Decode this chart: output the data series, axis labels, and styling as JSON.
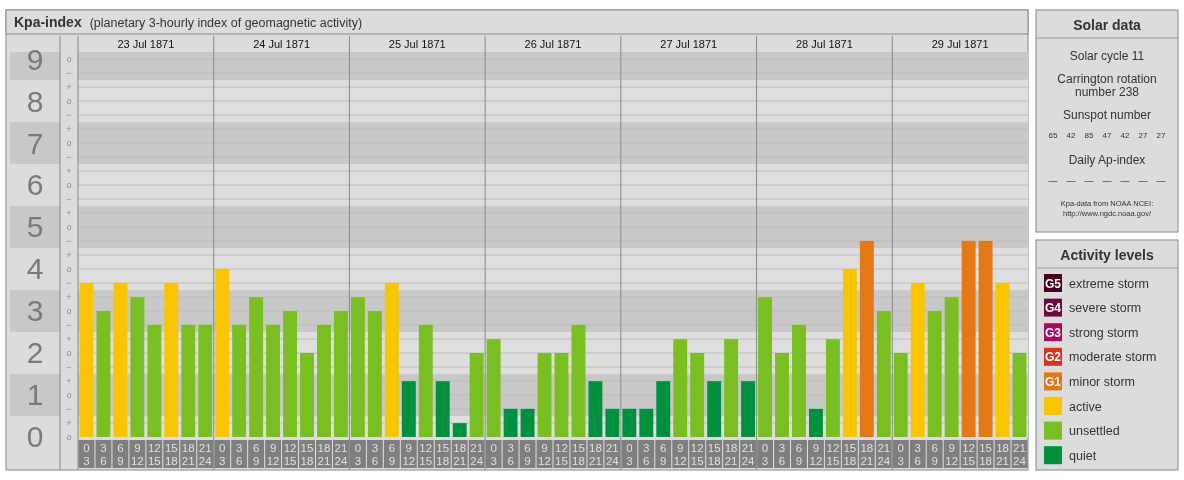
{
  "chart_data": {
    "type": "bar",
    "title": "Kpa-index",
    "subtitle": "(planetary 3-hourly index of geomagnetic activity)",
    "legend_title": "Activity levels",
    "legend": "right",
    "stacked": true,
    "grid": true,
    "categories": [
      "0\n3",
      "3\n6",
      "6\n9",
      "9\n12",
      "12\n15",
      "15\n18",
      "18\n21",
      "21\n24",
      "0\n3",
      "3\n6",
      "6\n9",
      "9\n12",
      "12\n15",
      "15\n18",
      "18\n21",
      "21\n24",
      "0\n3",
      "3\n6",
      "6\n9",
      "9\n12",
      "12\n15",
      "15\n18",
      "18\n21",
      "21\n24",
      "0\n3",
      "3\n6",
      "6\n9",
      "9\n12",
      "12\n15",
      "15\n18",
      "18\n21",
      "21\n24",
      "0\n3",
      "3\n6",
      "6\n9",
      "9\n12",
      "12\n15",
      "15\n18",
      "18\n21",
      "21\n24",
      "0\n3",
      "3\n6",
      "6\n9",
      "9\n12",
      "12\n15",
      "15\n18",
      "18\n21",
      "21\n24",
      "0\n3",
      "3\n6",
      "6\n9",
      "9\n12",
      "12\n15",
      "15\n18",
      "18\n21",
      "21\n24"
    ],
    "ylim": [
      0,
      9.17
    ],
    "yticks": [
      0,
      1,
      2,
      3,
      4,
      5,
      6,
      7,
      8,
      9
    ],
    "bands": [
      {
        "axis": "y",
        "from": 0.5,
        "to": 1.5,
        "color": "#c8c8c8"
      },
      {
        "axis": "y",
        "from": 2.5,
        "to": 3.5,
        "color": "#c8c8c8"
      },
      {
        "axis": "y",
        "from": 4.5,
        "to": 5.5,
        "color": "#c8c8c8"
      },
      {
        "axis": "y",
        "from": 6.5,
        "to": 7.5,
        "color": "#c8c8c8"
      },
      {
        "axis": "y",
        "from": 8.5,
        "to": 9.17,
        "color": "#c8c8c8"
      }
    ],
    "series": [
      {
        "name": "extreme storm",
        "color": "#4a0022",
        "values": [
          null,
          null,
          null,
          null,
          null,
          null,
          null,
          null,
          null,
          null,
          null,
          null,
          null,
          null,
          null,
          null,
          null,
          null,
          null,
          null,
          null,
          null,
          null,
          null,
          null,
          null,
          null,
          null,
          null,
          null,
          null,
          null,
          null,
          null,
          null,
          null,
          null,
          null,
          null,
          null,
          null,
          null,
          null,
          null,
          null,
          null,
          null,
          null,
          null,
          null,
          null,
          null,
          null,
          null,
          null,
          null
        ]
      },
      {
        "name": "severe storm",
        "color": "#6b0a40",
        "values": [
          null,
          null,
          null,
          null,
          null,
          null,
          null,
          null,
          null,
          null,
          null,
          null,
          null,
          null,
          null,
          null,
          null,
          null,
          null,
          null,
          null,
          null,
          null,
          null,
          null,
          null,
          null,
          null,
          null,
          null,
          null,
          null,
          null,
          null,
          null,
          null,
          null,
          null,
          null,
          null,
          null,
          null,
          null,
          null,
          null,
          null,
          null,
          null,
          null,
          null,
          null,
          null,
          null,
          null,
          null,
          null
        ]
      },
      {
        "name": "strong storm",
        "color": "#a80c5e",
        "values": [
          null,
          null,
          null,
          null,
          null,
          null,
          null,
          null,
          null,
          null,
          null,
          null,
          null,
          null,
          null,
          null,
          null,
          null,
          null,
          null,
          null,
          null,
          null,
          null,
          null,
          null,
          null,
          null,
          null,
          null,
          null,
          null,
          null,
          null,
          null,
          null,
          null,
          null,
          null,
          null,
          null,
          null,
          null,
          null,
          null,
          null,
          null,
          null,
          null,
          null,
          null,
          null,
          null,
          null,
          null,
          null
        ]
      },
      {
        "name": "moderate storm",
        "color": "#d8331f",
        "values": [
          null,
          null,
          null,
          null,
          null,
          null,
          null,
          null,
          null,
          null,
          null,
          null,
          null,
          null,
          null,
          null,
          null,
          null,
          null,
          null,
          null,
          null,
          null,
          null,
          null,
          null,
          null,
          null,
          null,
          null,
          null,
          null,
          null,
          null,
          null,
          null,
          null,
          null,
          null,
          null,
          null,
          null,
          null,
          null,
          null,
          null,
          null,
          null,
          null,
          null,
          null,
          null,
          null,
          null,
          null,
          null
        ]
      },
      {
        "name": "minor storm",
        "color": "#e47814",
        "values": [
          null,
          null,
          null,
          null,
          null,
          null,
          null,
          null,
          null,
          null,
          null,
          null,
          null,
          null,
          null,
          null,
          null,
          null,
          null,
          null,
          null,
          null,
          null,
          null,
          null,
          null,
          null,
          null,
          null,
          null,
          null,
          null,
          null,
          null,
          null,
          null,
          null,
          null,
          null,
          null,
          null,
          null,
          null,
          null,
          null,
          null,
          4.67,
          null,
          null,
          null,
          null,
          null,
          4.67,
          4.67,
          null,
          null
        ]
      },
      {
        "name": "active",
        "color": "#f9c400",
        "values": [
          3.67,
          null,
          3.67,
          null,
          null,
          3.67,
          null,
          null,
          4,
          null,
          null,
          null,
          null,
          null,
          null,
          null,
          null,
          null,
          3.67,
          null,
          null,
          null,
          null,
          null,
          null,
          null,
          null,
          null,
          null,
          null,
          null,
          null,
          null,
          null,
          null,
          null,
          null,
          null,
          null,
          null,
          null,
          null,
          null,
          null,
          null,
          4,
          null,
          null,
          null,
          3.67,
          null,
          null,
          null,
          null,
          3.67,
          null
        ]
      },
      {
        "name": "unsettled",
        "color": "#79bf21",
        "values": [
          null,
          3,
          null,
          3.33,
          2.67,
          null,
          2.67,
          2.67,
          null,
          2.67,
          3.33,
          2.67,
          3,
          2,
          2.67,
          3,
          3.33,
          3,
          null,
          null,
          2.67,
          null,
          null,
          2,
          2.33,
          null,
          null,
          2,
          2,
          2.67,
          null,
          null,
          null,
          null,
          null,
          2.33,
          2,
          null,
          2.33,
          null,
          3.33,
          2,
          2.67,
          null,
          2.33,
          null,
          null,
          3,
          2,
          null,
          3,
          3.33,
          null,
          null,
          null,
          2
        ]
      },
      {
        "name": "quiet",
        "color": "#00903f",
        "values": [
          null,
          null,
          null,
          null,
          null,
          null,
          null,
          null,
          null,
          null,
          null,
          null,
          null,
          null,
          null,
          null,
          null,
          null,
          null,
          1.33,
          null,
          1.33,
          0.33,
          null,
          null,
          0.67,
          0.67,
          null,
          null,
          null,
          1.33,
          0.67,
          0.67,
          0.67,
          1.33,
          null,
          null,
          1.33,
          null,
          1.33,
          null,
          null,
          null,
          0.67,
          null,
          null,
          null,
          null,
          null,
          null,
          null,
          null,
          null,
          null,
          null,
          null
        ]
      }
    ],
    "annotations": [
      "23 Jul 1871",
      "24 Jul 1871",
      "25 Jul 1871",
      "26 Jul 1871",
      "27 Jul 1871",
      "28 Jul 1871",
      "29 Jul 1871",
      "Solar data",
      "Solar cycle 11",
      "Carrington rotation number 238",
      "Sunspot number",
      "65 42 85 47 42 27 27",
      "Daily Ap-index",
      "— — — — — — —",
      "Kpa-data from NOAA NCEI:",
      "http://www.ngdc.noaa.gov/",
      "G5",
      "G4",
      "G3",
      "G2",
      "G1",
      "o",
      "+",
      "−",
      "o",
      "+",
      "−",
      "o",
      "+",
      "−",
      "o",
      "+",
      "−",
      "o",
      "+",
      "−",
      "o",
      "+",
      "−",
      "o",
      "+",
      "−",
      "o",
      "+",
      "−",
      "o",
      "+",
      "−",
      "o"
    ]
  }
}
